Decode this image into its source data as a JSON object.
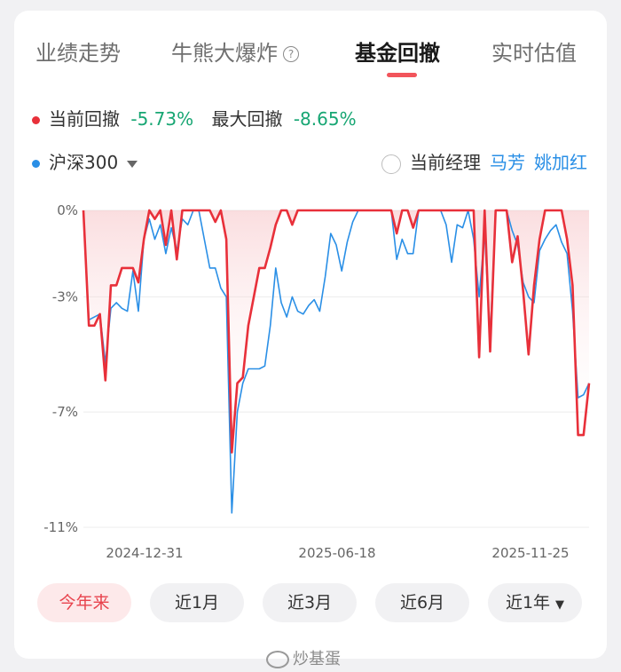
{
  "tabs": [
    {
      "label": "业绩走势",
      "active": false
    },
    {
      "label": "牛熊大爆炸",
      "active": false,
      "icon": "help-circle-icon"
    },
    {
      "label": "基金回撤",
      "active": true
    },
    {
      "label": "实时估值",
      "active": false
    }
  ],
  "stats": {
    "current_label": "当前回撤",
    "current_value": "-5.73%",
    "max_label": "最大回撤",
    "max_value": "-8.65%"
  },
  "benchmark": {
    "label": "沪深300"
  },
  "manager": {
    "label": "当前经理",
    "names": [
      "马芳",
      "姚加红"
    ]
  },
  "colors": {
    "fund": "#e8303a",
    "benchmark": "#2a8fe6",
    "positive": "#17a673",
    "accent": "#f2545b"
  },
  "periods": [
    {
      "label": "今年来",
      "active": true
    },
    {
      "label": "近1月",
      "active": false
    },
    {
      "label": "近3月",
      "active": false
    },
    {
      "label": "近6月",
      "active": false
    },
    {
      "label": "近1年",
      "active": false,
      "dropdown": true
    }
  ],
  "watermark": "炒基蛋",
  "chart_data": {
    "type": "line",
    "x_tick_labels": [
      "2024-12-31",
      "2025-06-18",
      "2025-11-25"
    ],
    "y_tick_labels": [
      "0%",
      "-3%",
      "-7%",
      "-11%"
    ],
    "yticks": [
      0,
      -3,
      -7,
      -11
    ],
    "ylim": [
      -11,
      0
    ],
    "grid": true,
    "series": [
      {
        "name": "当前回撤",
        "color": "#e8303a",
        "values": [
          0,
          -4,
          -4,
          -3.6,
          -5.9,
          -2.6,
          -2.6,
          -2,
          -2,
          -2,
          -2.5,
          -1,
          0,
          -0.3,
          0,
          -1.2,
          0,
          -1.7,
          0,
          0,
          0,
          0,
          0,
          0,
          -0.4,
          0,
          -1,
          -8.4,
          -6,
          -5.8,
          -4,
          -3,
          -2,
          -2,
          -1.3,
          -0.5,
          0,
          0,
          -0.5,
          0,
          0,
          0,
          0,
          0,
          0,
          0,
          0,
          0,
          0,
          0,
          0,
          0,
          0,
          0,
          0,
          0,
          0,
          -0.8,
          0,
          0,
          -0.6,
          0,
          0,
          0,
          0,
          0,
          0,
          0,
          0,
          0,
          0,
          0,
          -5.1,
          0,
          -4.9,
          0,
          0,
          0,
          -1.8,
          -0.9,
          -2.8,
          -5,
          -2.6,
          -1,
          0,
          0,
          0,
          0,
          -1,
          -2.6,
          -7.8,
          -7.8,
          -6
        ]
      },
      {
        "name": "沪深300",
        "color": "#2a8fe6",
        "values": [
          0,
          -3.8,
          -3.7,
          -3.6,
          -5.3,
          -3.4,
          -3.2,
          -3.4,
          -3.5,
          -2.1,
          -3.5,
          -1,
          -0.3,
          -1,
          -0.5,
          -1.5,
          -0.6,
          -1.4,
          -0.3,
          -0.5,
          0,
          0,
          -1,
          -2,
          -2,
          -2.7,
          -3,
          -10.5,
          -7,
          -6,
          -5.5,
          -5.5,
          -5.5,
          -5.4,
          -4,
          -2,
          -3.2,
          -3.7,
          -3,
          -3.5,
          -3.6,
          -3.3,
          -3.1,
          -3.5,
          -2.3,
          -0.8,
          -1.2,
          -2.1,
          -1.1,
          -0.4,
          0,
          0,
          0,
          0,
          0,
          0,
          0,
          -1.7,
          -1,
          -1.5,
          -1.5,
          0,
          0,
          0,
          0,
          0,
          -0.5,
          -1.8,
          -0.5,
          -0.6,
          0,
          -1,
          -3,
          -0.8,
          -4.4,
          0,
          0,
          0,
          -0.7,
          -1.2,
          -2.5,
          -3,
          -3.2,
          -1.4,
          -1,
          -0.7,
          -0.5,
          -1.1,
          -1.5,
          -3.5,
          -6.5,
          -6.4,
          -6
        ]
      }
    ]
  }
}
